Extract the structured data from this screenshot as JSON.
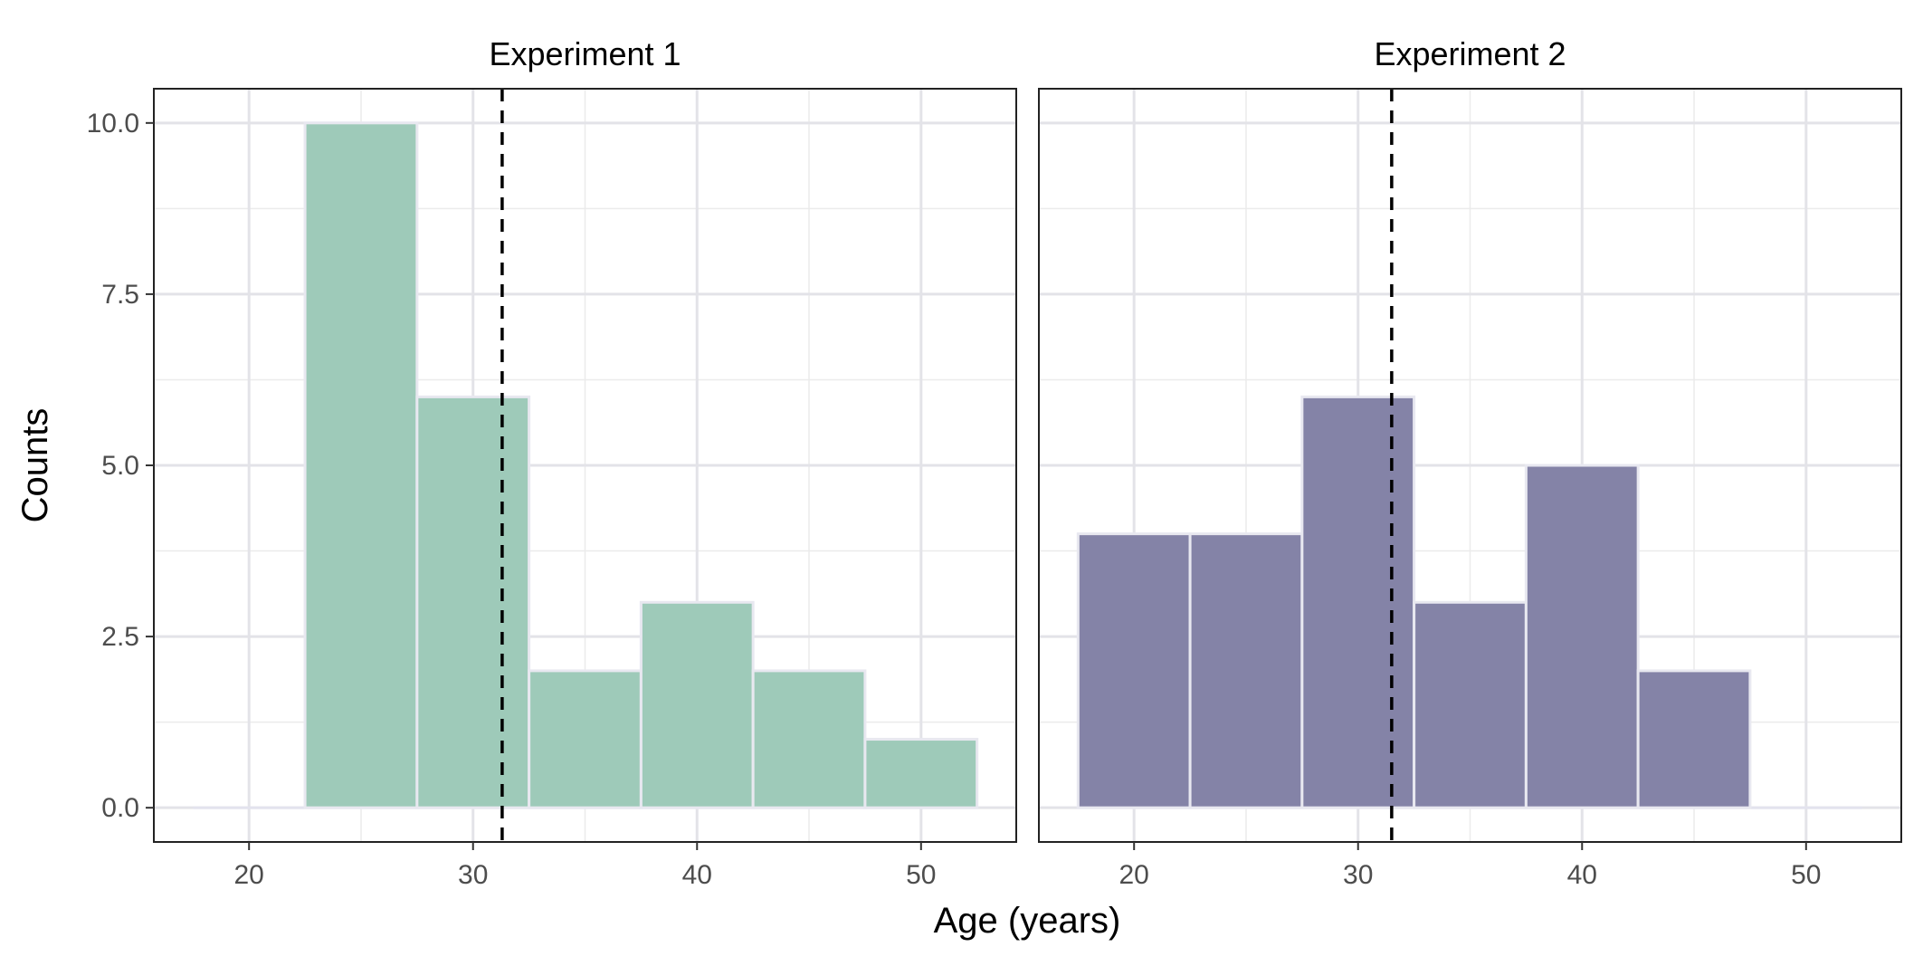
{
  "chart_data": {
    "type": "bar",
    "xlabel": "Age (years)",
    "ylabel": "Counts",
    "xlim": [
      15.75,
      54.25
    ],
    "ylim": [
      -0.5,
      10.5
    ],
    "x_ticks": [
      20,
      30,
      40,
      50
    ],
    "y_ticks": [
      0.0,
      2.5,
      5.0,
      7.5,
      10.0
    ],
    "y_tick_labels": [
      "0.0",
      "2.5",
      "5.0",
      "7.5",
      "10.0"
    ],
    "grid": true,
    "bin_width": 5,
    "panels": [
      {
        "title": "Experiment 1",
        "color": "#9ECAB9",
        "bins": [
          {
            "start": 22.5,
            "end": 27.5,
            "count": 10
          },
          {
            "start": 27.5,
            "end": 32.5,
            "count": 6
          },
          {
            "start": 32.5,
            "end": 37.5,
            "count": 2
          },
          {
            "start": 37.5,
            "end": 42.5,
            "count": 3
          },
          {
            "start": 42.5,
            "end": 47.5,
            "count": 2
          },
          {
            "start": 47.5,
            "end": 52.5,
            "count": 1
          }
        ],
        "mean_line": 31.3
      },
      {
        "title": "Experiment 2",
        "color": "#8483A7",
        "bins": [
          {
            "start": 17.5,
            "end": 22.5,
            "count": 4
          },
          {
            "start": 22.5,
            "end": 27.5,
            "count": 4
          },
          {
            "start": 27.5,
            "end": 32.5,
            "count": 6
          },
          {
            "start": 32.5,
            "end": 37.5,
            "count": 3
          },
          {
            "start": 37.5,
            "end": 42.5,
            "count": 5
          },
          {
            "start": 42.5,
            "end": 47.5,
            "count": 2
          }
        ],
        "mean_line": 31.5
      }
    ]
  }
}
